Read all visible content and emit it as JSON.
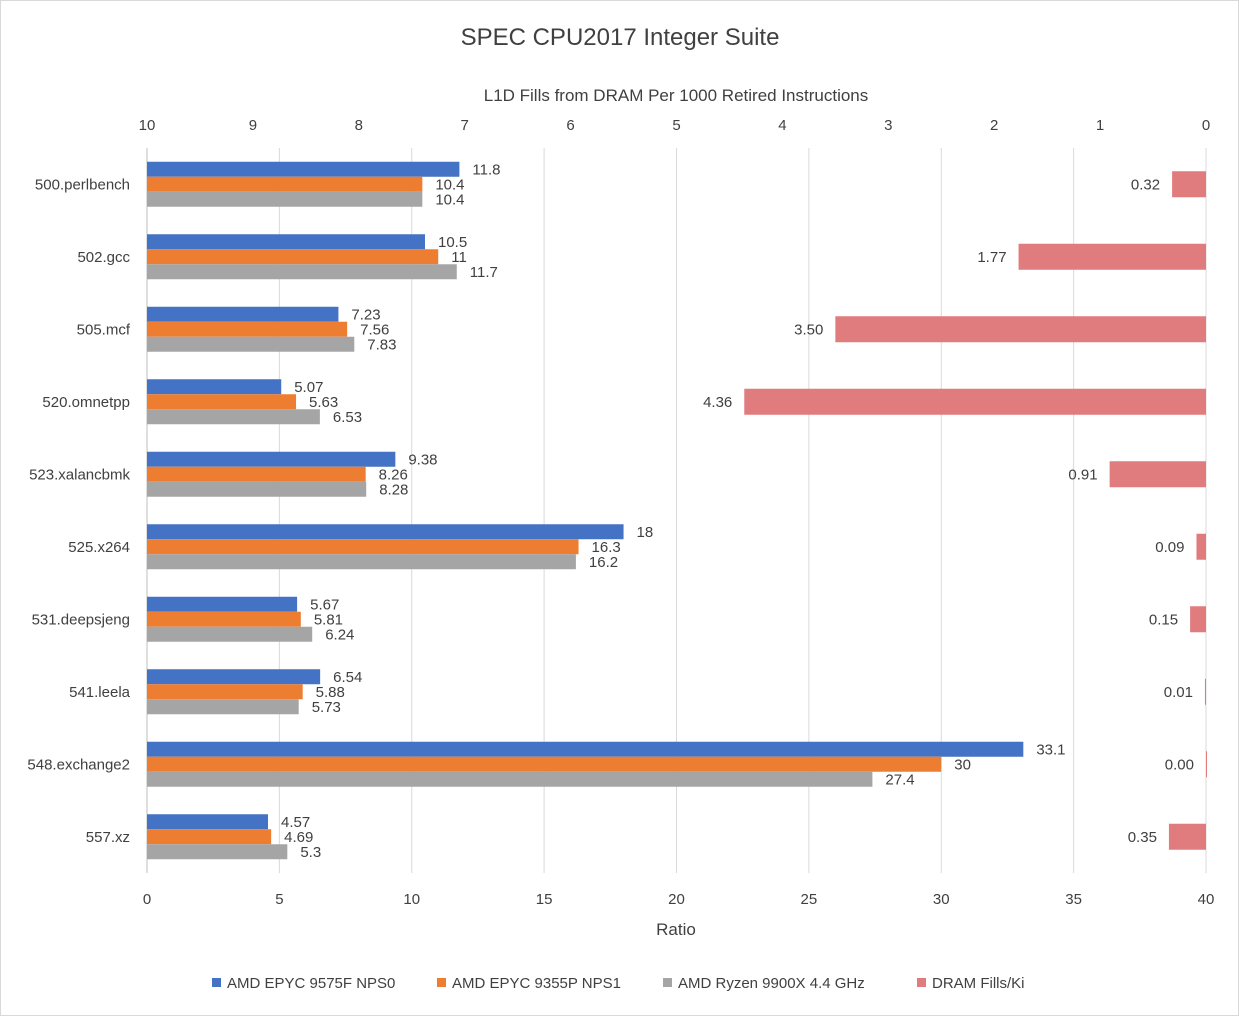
{
  "chart_data": {
    "type": "bar",
    "orientation": "horizontal",
    "title": "SPEC CPU2017 Integer Suite",
    "xlabel": "Ratio",
    "x2label": "L1D Fills from DRAM Per 1000 Retired Instructions",
    "xlim": [
      0,
      40
    ],
    "xticks": [
      0,
      5,
      10,
      15,
      20,
      25,
      30,
      35,
      40
    ],
    "x2lim": [
      10,
      0
    ],
    "x2ticks": [
      10,
      9,
      8,
      7,
      6,
      5,
      4,
      3,
      2,
      1,
      0
    ],
    "x2_reversed": true,
    "grid": true,
    "legend_position": "bottom",
    "categories": [
      "500.perlbench",
      "502.gcc",
      "505.mcf",
      "520.omnetpp",
      "523.xalancbmk",
      "525.x264",
      "531.deepsjeng",
      "541.leela",
      "548.exchange2",
      "557.xz"
    ],
    "series": [
      {
        "name": "AMD EPYC 9575F NPS0",
        "axis": "primary",
        "color": "#4472C4",
        "values": [
          11.8,
          10.5,
          7.23,
          5.07,
          9.38,
          18,
          5.67,
          6.54,
          33.1,
          4.57
        ],
        "labels": [
          "11.8",
          "10.5",
          "7.23",
          "5.07",
          "9.38",
          "18",
          "5.67",
          "6.54",
          "33.1",
          "4.57"
        ]
      },
      {
        "name": "AMD EPYC 9355P NPS1",
        "axis": "primary",
        "color": "#ED7D31",
        "values": [
          10.4,
          11,
          7.56,
          5.63,
          8.26,
          16.3,
          5.81,
          5.88,
          30,
          4.69
        ],
        "labels": [
          "10.4",
          "11",
          "7.56",
          "5.63",
          "8.26",
          "16.3",
          "5.81",
          "5.88",
          "30",
          "4.69"
        ]
      },
      {
        "name": "AMD Ryzen 9900X 4.4 GHz",
        "axis": "primary",
        "color": "#A5A5A5",
        "values": [
          10.4,
          11.7,
          7.83,
          6.53,
          8.28,
          16.2,
          6.24,
          5.73,
          27.4,
          5.3
        ],
        "labels": [
          "10.4",
          "11.7",
          "7.83",
          "6.53",
          "8.28",
          "16.2",
          "6.24",
          "5.73",
          "27.4",
          "5.3"
        ]
      },
      {
        "name": "DRAM Fills/Ki",
        "axis": "secondary",
        "color": "#E07B7E",
        "values": [
          0.32,
          1.77,
          3.5,
          4.36,
          0.91,
          0.09,
          0.15,
          0.01,
          0.0,
          0.35
        ],
        "labels": [
          "0.32",
          "1.77",
          "3.50",
          "4.36",
          "0.91",
          "0.09",
          "0.15",
          "0.01",
          "0.00",
          "0.35"
        ]
      }
    ]
  }
}
